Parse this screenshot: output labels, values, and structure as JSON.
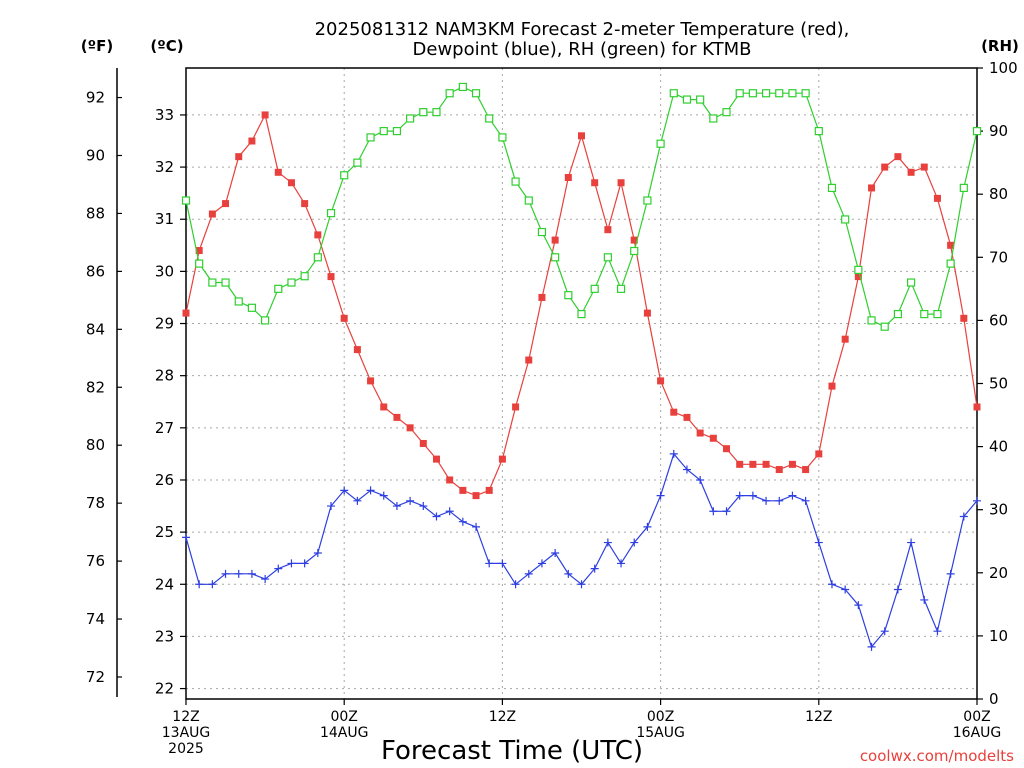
{
  "chart_data": {
    "type": "line",
    "title": [
      "2025081312 NAM3KM Forecast 2-meter Temperature (red),",
      "Dewpoint (blue), RH (green) for KTMB"
    ],
    "xlabel": "Forecast Time (UTC)",
    "credit": "coolwx.com/modelts",
    "units": {
      "fahrenheit": "(ºF)",
      "celsius": "(ºC)",
      "rh": "(RH)"
    },
    "x_range_hours": [
      0,
      60
    ],
    "y_celsius_range": [
      21.8,
      33.9
    ],
    "y_rh_range": [
      0,
      100
    ],
    "grid": true,
    "x_ticks": [
      {
        "hour": 0,
        "lines": [
          "12Z",
          "13AUG",
          "2025"
        ]
      },
      {
        "hour": 12,
        "lines": [
          "00Z",
          "14AUG"
        ]
      },
      {
        "hour": 24,
        "lines": [
          "12Z"
        ]
      },
      {
        "hour": 36,
        "lines": [
          "00Z",
          "15AUG"
        ]
      },
      {
        "hour": 48,
        "lines": [
          "12Z"
        ]
      },
      {
        "hour": 60,
        "lines": [
          "00Z",
          "16AUG"
        ]
      }
    ],
    "y_celsius_ticks": [
      22,
      23,
      24,
      25,
      26,
      27,
      28,
      29,
      30,
      31,
      32,
      33
    ],
    "y_fahrenheit_ticks": [
      72,
      74,
      76,
      78,
      80,
      82,
      84,
      86,
      88,
      90,
      92
    ],
    "y_rh_ticks": [
      0,
      10,
      20,
      30,
      40,
      50,
      60,
      70,
      80,
      90,
      100
    ],
    "x_hours": [
      0,
      1,
      2,
      3,
      4,
      5,
      6,
      7,
      8,
      9,
      10,
      11,
      12,
      13,
      14,
      15,
      16,
      17,
      18,
      19,
      20,
      21,
      22,
      23,
      24,
      25,
      26,
      27,
      28,
      29,
      30,
      31,
      32,
      33,
      34,
      35,
      36,
      37,
      38,
      39,
      40,
      41,
      42,
      43,
      44,
      45,
      46,
      47,
      48,
      49,
      50,
      51,
      52,
      53,
      54,
      55,
      56,
      57,
      58,
      59,
      60
    ],
    "series": [
      {
        "name": "Temperature",
        "color": "#e8403c",
        "marker": "filled-square",
        "units": "C",
        "values": [
          29.2,
          30.4,
          31.1,
          31.3,
          32.2,
          32.5,
          33.0,
          31.9,
          31.7,
          31.3,
          30.7,
          29.9,
          29.1,
          28.5,
          27.9,
          27.4,
          27.2,
          27.0,
          26.7,
          26.4,
          26.0,
          25.8,
          25.7,
          25.8,
          26.4,
          27.4,
          28.3,
          29.5,
          30.6,
          31.8,
          32.6,
          31.7,
          30.8,
          31.7,
          30.6,
          29.2,
          27.9,
          27.3,
          27.2,
          26.9,
          26.8,
          26.6,
          26.3,
          26.3,
          26.3,
          26.2,
          26.3,
          26.2,
          26.5,
          27.8,
          28.7,
          29.9,
          31.6,
          32.0,
          32.2,
          31.9,
          32.0,
          31.4,
          30.5,
          29.1,
          27.4
        ]
      },
      {
        "name": "Dewpoint",
        "color": "#2d3fe0",
        "marker": "plus",
        "units": "C",
        "values": [
          24.9,
          24.0,
          24.0,
          24.2,
          24.2,
          24.2,
          24.1,
          24.3,
          24.4,
          24.4,
          24.6,
          25.5,
          25.8,
          25.6,
          25.8,
          25.7,
          25.5,
          25.6,
          25.5,
          25.3,
          25.4,
          25.2,
          25.1,
          24.4,
          24.4,
          24.0,
          24.2,
          24.4,
          24.6,
          24.2,
          24.0,
          24.3,
          24.8,
          24.4,
          24.8,
          25.1,
          25.7,
          26.5,
          26.2,
          26.0,
          25.4,
          25.4,
          25.7,
          25.7,
          25.6,
          25.6,
          25.7,
          25.6,
          24.8,
          24.0,
          23.9,
          23.6,
          22.8,
          23.1,
          23.9,
          24.8,
          23.7,
          23.1,
          24.2,
          25.3,
          25.6
        ]
      },
      {
        "name": "RH",
        "color": "#2fcf2f",
        "marker": "open-square",
        "units": "%",
        "values": [
          79,
          69,
          66,
          66,
          63,
          62,
          60,
          65,
          66,
          67,
          70,
          77,
          83,
          85,
          89,
          90,
          90,
          92,
          93,
          93,
          96,
          97,
          96,
          92,
          89,
          82,
          79,
          74,
          70,
          64,
          61,
          65,
          70,
          65,
          71,
          79,
          88,
          96,
          95,
          95,
          92,
          93,
          96,
          96,
          96,
          96,
          96,
          96,
          90,
          81,
          76,
          68,
          60,
          59,
          61,
          66,
          61,
          61,
          69,
          81,
          90
        ]
      }
    ]
  }
}
